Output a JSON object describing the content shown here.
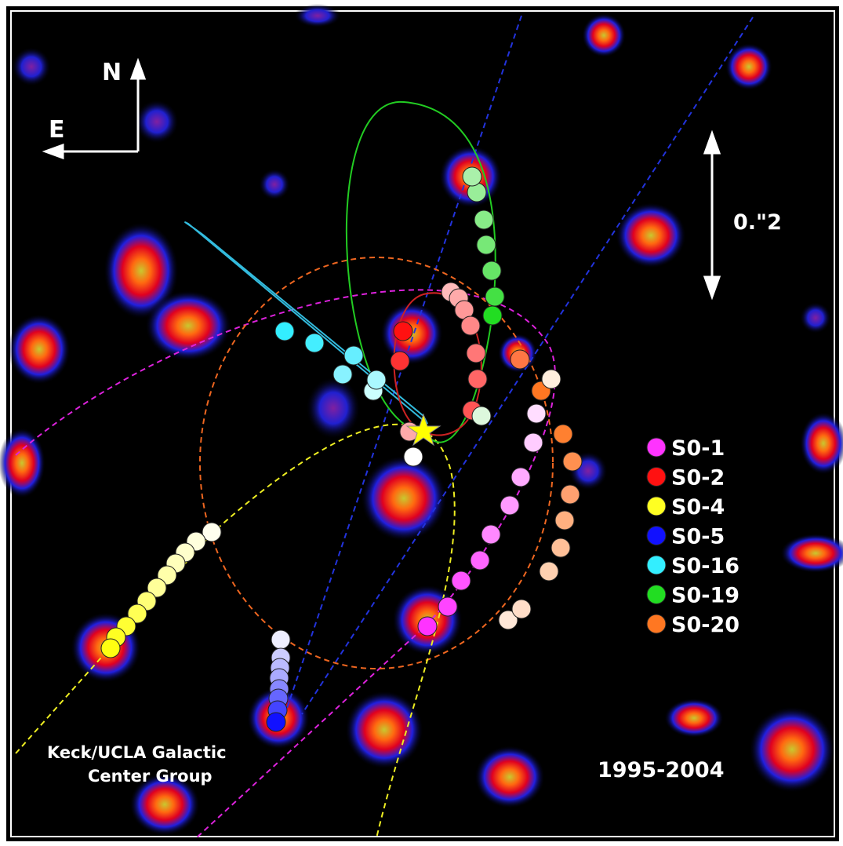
{
  "compass": {
    "north": "N",
    "east": "E"
  },
  "scale_bar": "0.\"2",
  "legend": [
    {
      "name": "S0-1",
      "color": "#ff33ff"
    },
    {
      "name": "S0-2",
      "color": "#ff1111"
    },
    {
      "name": "S0-4",
      "color": "#ffff22"
    },
    {
      "name": "S0-5",
      "color": "#1111ff"
    },
    {
      "name": "S0-16",
      "color": "#33eeff"
    },
    {
      "name": "S0-19",
      "color": "#22dd22"
    },
    {
      "name": "S0-20",
      "color": "#ff7722"
    }
  ],
  "credit": [
    "Keck/UCLA Galactic",
    "Center Group"
  ],
  "date_range": "1995-2004"
}
